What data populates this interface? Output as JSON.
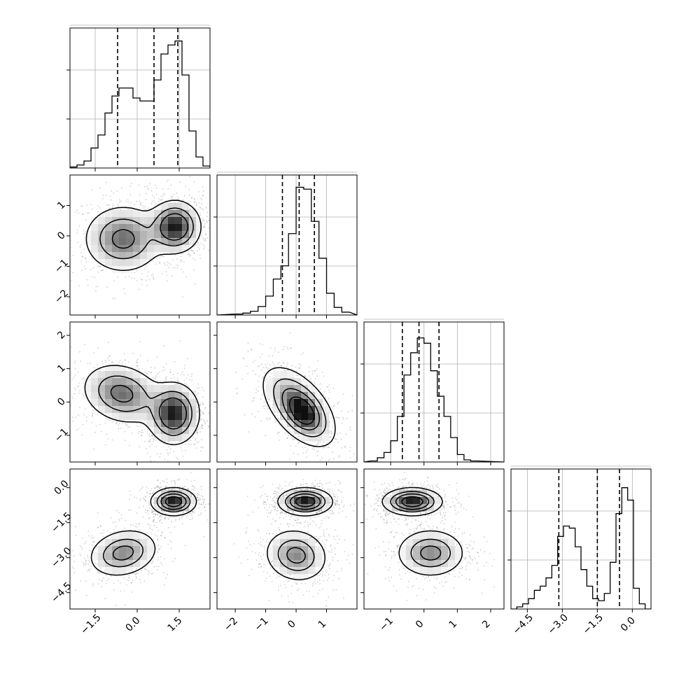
{
  "chart_data": {
    "type": "corner",
    "grid": true,
    "params": [
      {
        "range": [
          -2.4,
          2.6
        ],
        "ticks": [
          -1.5,
          0.0,
          1.5
        ],
        "tick_labels": [
          "−1.5",
          "0.0",
          "1.5"
        ],
        "quantiles": [
          -0.7,
          0.6,
          1.45
        ],
        "hist": {
          "x": [
            -2.4,
            -2.15,
            -1.9,
            -1.65,
            -1.4,
            -1.15,
            -0.9,
            -0.65,
            -0.4,
            -0.15,
            0.1,
            0.35,
            0.6,
            0.85,
            1.1,
            1.35,
            1.6,
            1.85,
            2.1,
            2.35
          ],
          "y": [
            0.01,
            0.03,
            0.07,
            0.2,
            0.33,
            0.55,
            0.72,
            0.8,
            0.8,
            0.7,
            0.67,
            0.67,
            0.88,
            1.14,
            1.23,
            1.27,
            0.93,
            0.37,
            0.11,
            0.02
          ],
          "ymax": 1.4
        }
      },
      {
        "range": [
          -2.6,
          2.0
        ],
        "ticks": [
          -2,
          -1,
          0,
          1
        ],
        "tick_labels": [
          "−2",
          "−1",
          "0",
          "1"
        ],
        "quantiles": [
          -0.45,
          0.1,
          0.6
        ],
        "hist": {
          "x": [
            -2.0,
            -1.75,
            -1.5,
            -1.25,
            -1.0,
            -0.75,
            -0.5,
            -0.25,
            0.0,
            0.25,
            0.5,
            0.75,
            1.0,
            1.25,
            1.5
          ],
          "y": [
            0.01,
            0.02,
            0.04,
            0.09,
            0.2,
            0.38,
            0.52,
            0.86,
            1.35,
            1.33,
            0.99,
            0.6,
            0.23,
            0.08,
            0.03
          ],
          "ymax": 1.48
        }
      },
      {
        "range": [
          -1.8,
          2.4
        ],
        "ticks": [
          -1,
          0,
          1,
          2
        ],
        "tick_labels": [
          "−1",
          "0",
          "1",
          "2"
        ],
        "quantiles": [
          -0.65,
          -0.15,
          0.45
        ],
        "hist": {
          "x": [
            -1.6,
            -1.4,
            -1.2,
            -1.0,
            -0.8,
            -0.6,
            -0.4,
            -0.2,
            0.0,
            0.2,
            0.4,
            0.6,
            0.8,
            1.0,
            1.2,
            1.4
          ],
          "y": [
            0.01,
            0.04,
            0.09,
            0.2,
            0.43,
            0.82,
            1.03,
            1.17,
            1.12,
            0.86,
            0.62,
            0.43,
            0.23,
            0.07,
            0.02,
            0.01
          ],
          "ymax": 1.32
        }
      },
      {
        "range": [
          -5.2,
          0.8
        ],
        "ticks": [
          -4.5,
          -3.0,
          -1.5,
          0.0
        ],
        "tick_labels": [
          "−4.5",
          "−3.0",
          "−1.5",
          "0.0"
        ],
        "quantiles": [
          -3.15,
          -1.5,
          -0.55
        ],
        "hist": {
          "x": [
            -5.2,
            -4.95,
            -4.7,
            -4.45,
            -4.2,
            -3.95,
            -3.7,
            -3.45,
            -3.2,
            -2.95,
            -2.7,
            -2.45,
            -2.2,
            -1.95,
            -1.7,
            -1.45,
            -1.2,
            -0.95,
            -0.7,
            -0.45,
            -0.2,
            0.05,
            0.3,
            0.55
          ],
          "y": [
            0.0,
            0.02,
            0.05,
            0.1,
            0.18,
            0.22,
            0.3,
            0.42,
            0.7,
            0.8,
            0.78,
            0.6,
            0.38,
            0.22,
            0.1,
            0.08,
            0.15,
            0.45,
            0.92,
            1.17,
            1.05,
            0.2,
            0.05,
            0.0
          ],
          "ymax": 1.35
        }
      }
    ],
    "panels_2d": [
      {
        "row": 1,
        "col": 0,
        "blobs": [
          {
            "cx": -0.5,
            "cy": -0.1,
            "sx": 0.7,
            "sy": 0.55,
            "rho": 0.0,
            "peak": 0.7
          },
          {
            "cx": 1.35,
            "cy": 0.3,
            "sx": 0.45,
            "sy": 0.42,
            "rho": 0.0,
            "peak": 1.0
          }
        ],
        "contours": [
          0.6,
          0.35,
          0.12
        ]
      },
      {
        "row": 2,
        "col": 0,
        "blobs": [
          {
            "cx": -0.55,
            "cy": 0.25,
            "sx": 0.7,
            "sy": 0.45,
            "rho": -0.2,
            "peak": 0.7
          },
          {
            "cx": 1.3,
            "cy": -0.35,
            "sx": 0.45,
            "sy": 0.45,
            "rho": 0.0,
            "peak": 1.0
          }
        ],
        "contours": [
          0.6,
          0.35,
          0.12
        ]
      },
      {
        "row": 2,
        "col": 1,
        "blobs": [
          {
            "cx": 0.1,
            "cy": -0.15,
            "sx": 0.55,
            "sy": 0.55,
            "rho": -0.55,
            "peak": 0.8
          },
          {
            "cx": 0.25,
            "cy": -0.35,
            "sx": 0.3,
            "sy": 0.3,
            "rho": -0.3,
            "peak": 0.5
          }
        ],
        "contours": [
          0.8,
          0.5,
          0.25,
          0.08
        ]
      },
      {
        "row": 3,
        "col": 0,
        "blobs": [
          {
            "cx": -0.5,
            "cy": -2.8,
            "sx": 0.6,
            "sy": 0.5,
            "rho": 0.2,
            "peak": 0.6
          },
          {
            "cx": 1.3,
            "cy": -0.6,
            "sx": 0.38,
            "sy": 0.28,
            "rho": 0.0,
            "peak": 1.0
          }
        ],
        "contours": [
          0.75,
          0.5,
          0.3,
          0.1
        ]
      },
      {
        "row": 3,
        "col": 1,
        "blobs": [
          {
            "cx": 0.0,
            "cy": -2.9,
            "sx": 0.5,
            "sy": 0.55,
            "rho": -0.1,
            "peak": 0.6
          },
          {
            "cx": 0.3,
            "cy": -0.6,
            "sx": 0.42,
            "sy": 0.28,
            "rho": 0.0,
            "peak": 1.0
          }
        ],
        "contours": [
          0.75,
          0.5,
          0.3,
          0.1
        ]
      },
      {
        "row": 3,
        "col": 2,
        "blobs": [
          {
            "cx": 0.2,
            "cy": -2.8,
            "sx": 0.5,
            "sy": 0.5,
            "rho": 0.0,
            "peak": 0.6
          },
          {
            "cx": -0.35,
            "cy": -0.6,
            "sx": 0.42,
            "sy": 0.28,
            "rho": 0.0,
            "peak": 1.0
          }
        ],
        "contours": [
          0.75,
          0.5,
          0.3,
          0.1
        ]
      }
    ]
  }
}
